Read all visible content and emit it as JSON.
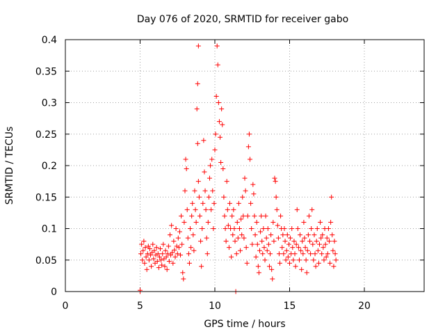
{
  "chart_data": {
    "type": "scatter",
    "title": "Day 076 of 2020, SRMTID for receiver gabo",
    "xlabel": "GPS time / hours",
    "ylabel": "SRMTID / TECUs",
    "xlim": [
      0,
      24
    ],
    "ylim": [
      0,
      0.4
    ],
    "xticks": [
      0,
      5,
      10,
      15,
      20
    ],
    "xtick_labels": [
      "0",
      "5",
      "10",
      "15",
      "20"
    ],
    "yticks": [
      0,
      0.05,
      0.1,
      0.15,
      0.2,
      0.25,
      0.3,
      0.35,
      0.4
    ],
    "ytick_labels": [
      "0",
      "0.05",
      "0.1",
      "0.15",
      "0.2",
      "0.25",
      "0.3",
      "0.35",
      "0.4"
    ],
    "grid": true,
    "marker": "+",
    "color": "#ff0000",
    "series": [
      {
        "name": "gabo",
        "points": [
          [
            5.0,
            0.0
          ],
          [
            5.0,
            0.002
          ],
          [
            5.05,
            0.06
          ],
          [
            5.1,
            0.075
          ],
          [
            5.15,
            0.05
          ],
          [
            5.2,
            0.065
          ],
          [
            5.25,
            0.08
          ],
          [
            5.3,
            0.045
          ],
          [
            5.35,
            0.07
          ],
          [
            5.4,
            0.055
          ],
          [
            5.45,
            0.035
          ],
          [
            5.5,
            0.06
          ],
          [
            5.55,
            0.072
          ],
          [
            5.6,
            0.05
          ],
          [
            5.65,
            0.068
          ],
          [
            5.7,
            0.058
          ],
          [
            5.75,
            0.04
          ],
          [
            5.8,
            0.062
          ],
          [
            5.85,
            0.075
          ],
          [
            5.9,
            0.052
          ],
          [
            5.95,
            0.065
          ],
          [
            6.0,
            0.045
          ],
          [
            6.05,
            0.058
          ],
          [
            6.1,
            0.07
          ],
          [
            6.15,
            0.048
          ],
          [
            6.2,
            0.06
          ],
          [
            6.25,
            0.038
          ],
          [
            6.3,
            0.055
          ],
          [
            6.35,
            0.068
          ],
          [
            6.4,
            0.05
          ],
          [
            6.45,
            0.042
          ],
          [
            6.5,
            0.06
          ],
          [
            6.55,
            0.075
          ],
          [
            6.6,
            0.052
          ],
          [
            6.65,
            0.04
          ],
          [
            6.7,
            0.065
          ],
          [
            6.75,
            0.055
          ],
          [
            6.8,
            0.035
          ],
          [
            6.85,
            0.06
          ],
          [
            6.9,
            0.072
          ],
          [
            6.95,
            0.048
          ],
          [
            7.0,
            0.09
          ],
          [
            7.05,
            0.058
          ],
          [
            7.1,
            0.105
          ],
          [
            7.15,
            0.062
          ],
          [
            7.2,
            0.045
          ],
          [
            7.25,
            0.08
          ],
          [
            7.3,
            0.066
          ],
          [
            7.35,
            0.055
          ],
          [
            7.4,
            0.1
          ],
          [
            7.45,
            0.072
          ],
          [
            7.5,
            0.06
          ],
          [
            7.55,
            0.085
          ],
          [
            7.6,
            0.07
          ],
          [
            7.65,
            0.095
          ],
          [
            7.7,
            0.058
          ],
          [
            7.75,
            0.12
          ],
          [
            7.8,
            0.075
          ],
          [
            7.85,
            0.03
          ],
          [
            7.9,
            0.02
          ],
          [
            7.95,
            0.11
          ],
          [
            8.0,
            0.16
          ],
          [
            8.05,
            0.21
          ],
          [
            8.1,
            0.195
          ],
          [
            8.15,
            0.13
          ],
          [
            8.2,
            0.085
          ],
          [
            8.25,
            0.06
          ],
          [
            8.3,
            0.045
          ],
          [
            8.35,
            0.1
          ],
          [
            8.4,
            0.07
          ],
          [
            8.45,
            0.12
          ],
          [
            8.5,
            0.14
          ],
          [
            8.55,
            0.09
          ],
          [
            8.6,
            0.065
          ],
          [
            8.65,
            0.16
          ],
          [
            8.7,
            0.13
          ],
          [
            8.75,
            0.11
          ],
          [
            8.8,
            0.29
          ],
          [
            8.85,
            0.33
          ],
          [
            8.9,
            0.39
          ],
          [
            8.85,
            0.235
          ],
          [
            8.9,
            0.175
          ],
          [
            8.95,
            0.15
          ],
          [
            9.0,
            0.12
          ],
          [
            9.05,
            0.08
          ],
          [
            9.1,
            0.04
          ],
          [
            9.15,
            0.1
          ],
          [
            9.2,
            0.14
          ],
          [
            9.25,
            0.24
          ],
          [
            9.3,
            0.19
          ],
          [
            9.35,
            0.16
          ],
          [
            9.4,
            0.13
          ],
          [
            9.45,
            0.085
          ],
          [
            9.5,
            0.06
          ],
          [
            9.55,
            0.11
          ],
          [
            9.6,
            0.15
          ],
          [
            9.65,
            0.18
          ],
          [
            9.7,
            0.2
          ],
          [
            9.75,
            0.13
          ],
          [
            9.8,
            0.21
          ],
          [
            9.85,
            0.16
          ],
          [
            9.9,
            0.1
          ],
          [
            9.95,
            0.14
          ],
          [
            10.0,
            0.225
          ],
          [
            10.05,
            0.25
          ],
          [
            10.1,
            0.31
          ],
          [
            10.15,
            0.39
          ],
          [
            10.2,
            0.36
          ],
          [
            10.25,
            0.3
          ],
          [
            10.3,
            0.27
          ],
          [
            10.35,
            0.245
          ],
          [
            10.4,
            0.205
          ],
          [
            10.45,
            0.29
          ],
          [
            10.5,
            0.265
          ],
          [
            10.55,
            0.195
          ],
          [
            10.6,
            0.15
          ],
          [
            10.65,
            0.12
          ],
          [
            10.7,
            0.1
          ],
          [
            10.75,
            0.08
          ],
          [
            10.8,
            0.175
          ],
          [
            10.85,
            0.13
          ],
          [
            10.9,
            0.105
          ],
          [
            10.95,
            0.07
          ],
          [
            11.0,
            0.14
          ],
          [
            11.05,
            0.1
          ],
          [
            11.1,
            0.055
          ],
          [
            11.15,
            0.12
          ],
          [
            11.2,
            0.09
          ],
          [
            11.25,
            0.13
          ],
          [
            11.3,
            0.1
          ],
          [
            11.35,
            0.08
          ],
          [
            11.4,
            0.0
          ],
          [
            11.45,
            0.06
          ],
          [
            11.5,
            0.11
          ],
          [
            11.55,
            0.085
          ],
          [
            11.6,
            0.14
          ],
          [
            11.65,
            0.1
          ],
          [
            11.7,
            0.065
          ],
          [
            11.75,
            0.115
          ],
          [
            11.8,
            0.09
          ],
          [
            11.85,
            0.15
          ],
          [
            11.9,
            0.12
          ],
          [
            11.95,
            0.085
          ],
          [
            12.0,
            0.18
          ],
          [
            12.05,
            0.16
          ],
          [
            12.1,
            0.07
          ],
          [
            12.15,
            0.045
          ],
          [
            12.2,
            0.12
          ],
          [
            12.25,
            0.23
          ],
          [
            12.3,
            0.25
          ],
          [
            12.35,
            0.21
          ],
          [
            12.4,
            0.14
          ],
          [
            12.45,
            0.1
          ],
          [
            12.5,
            0.075
          ],
          [
            12.55,
            0.17
          ],
          [
            12.6,
            0.155
          ],
          [
            12.65,
            0.12
          ],
          [
            12.7,
            0.09
          ],
          [
            12.75,
            0.055
          ],
          [
            12.8,
            0.11
          ],
          [
            12.85,
            0.075
          ],
          [
            12.9,
            0.04
          ],
          [
            12.95,
            0.03
          ],
          [
            13.0,
            0.065
          ],
          [
            13.05,
            0.095
          ],
          [
            13.1,
            0.12
          ],
          [
            13.15,
            0.08
          ],
          [
            13.2,
            0.06
          ],
          [
            13.25,
            0.1
          ],
          [
            13.3,
            0.07
          ],
          [
            13.35,
            0.05
          ],
          [
            13.4,
            0.12
          ],
          [
            13.45,
            0.085
          ],
          [
            13.5,
            0.065
          ],
          [
            13.55,
            0.1
          ],
          [
            13.6,
            0.075
          ],
          [
            13.65,
            0.04
          ],
          [
            13.7,
            0.06
          ],
          [
            13.75,
            0.09
          ],
          [
            13.8,
            0.035
          ],
          [
            13.85,
            0.02
          ],
          [
            13.9,
            0.11
          ],
          [
            13.95,
            0.08
          ],
          [
            14.0,
            0.18
          ],
          [
            14.05,
            0.175
          ],
          [
            14.1,
            0.15
          ],
          [
            14.15,
            0.13
          ],
          [
            14.2,
            0.105
          ],
          [
            14.25,
            0.085
          ],
          [
            14.3,
            0.06
          ],
          [
            14.35,
            0.045
          ],
          [
            14.4,
            0.12
          ],
          [
            14.45,
            0.1
          ],
          [
            14.5,
            0.07
          ],
          [
            14.55,
            0.09
          ],
          [
            14.6,
            0.06
          ],
          [
            14.65,
            0.1
          ],
          [
            14.7,
            0.08
          ],
          [
            14.75,
            0.05
          ],
          [
            14.8,
            0.065
          ],
          [
            14.85,
            0.09
          ],
          [
            14.9,
            0.055
          ],
          [
            14.95,
            0.075
          ],
          [
            15.0,
            0.045
          ],
          [
            15.05,
            0.085
          ],
          [
            15.1,
            0.06
          ],
          [
            15.15,
            0.1
          ],
          [
            15.2,
            0.07
          ],
          [
            15.25,
            0.05
          ],
          [
            15.3,
            0.08
          ],
          [
            15.35,
            0.06
          ],
          [
            15.4,
            0.04
          ],
          [
            15.45,
            0.075
          ],
          [
            15.5,
            0.13
          ],
          [
            15.55,
            0.1
          ],
          [
            15.6,
            0.07
          ],
          [
            15.65,
            0.05
          ],
          [
            15.7,
            0.09
          ],
          [
            15.75,
            0.065
          ],
          [
            15.8,
            0.035
          ],
          [
            15.85,
            0.08
          ],
          [
            15.9,
            0.06
          ],
          [
            15.95,
            0.11
          ],
          [
            16.0,
            0.085
          ],
          [
            16.05,
            0.07
          ],
          [
            16.1,
            0.05
          ],
          [
            16.15,
            0.03
          ],
          [
            16.2,
            0.065
          ],
          [
            16.25,
            0.09
          ],
          [
            16.3,
            0.12
          ],
          [
            16.35,
            0.08
          ],
          [
            16.4,
            0.06
          ],
          [
            16.45,
            0.1
          ],
          [
            16.5,
            0.13
          ],
          [
            16.55,
            0.075
          ],
          [
            16.6,
            0.05
          ],
          [
            16.65,
            0.09
          ],
          [
            16.7,
            0.06
          ],
          [
            16.75,
            0.04
          ],
          [
            16.8,
            0.08
          ],
          [
            16.85,
            0.1
          ],
          [
            16.9,
            0.065
          ],
          [
            16.95,
            0.045
          ],
          [
            17.0,
            0.075
          ],
          [
            17.05,
            0.11
          ],
          [
            17.1,
            0.085
          ],
          [
            17.15,
            0.06
          ],
          [
            17.2,
            0.09
          ],
          [
            17.25,
            0.07
          ],
          [
            17.3,
            0.05
          ],
          [
            17.35,
            0.1
          ],
          [
            17.4,
            0.075
          ],
          [
            17.45,
            0.055
          ],
          [
            17.5,
            0.085
          ],
          [
            17.55,
            0.06
          ],
          [
            17.6,
            0.1
          ],
          [
            17.65,
            0.08
          ],
          [
            17.7,
            0.045
          ],
          [
            17.75,
            0.11
          ],
          [
            17.8,
            0.15
          ],
          [
            17.85,
            0.09
          ],
          [
            17.9,
            0.065
          ],
          [
            17.95,
            0.04
          ],
          [
            18.0,
            0.08
          ],
          [
            18.05,
            0.06
          ],
          [
            18.1,
            0.05
          ]
        ]
      }
    ]
  }
}
